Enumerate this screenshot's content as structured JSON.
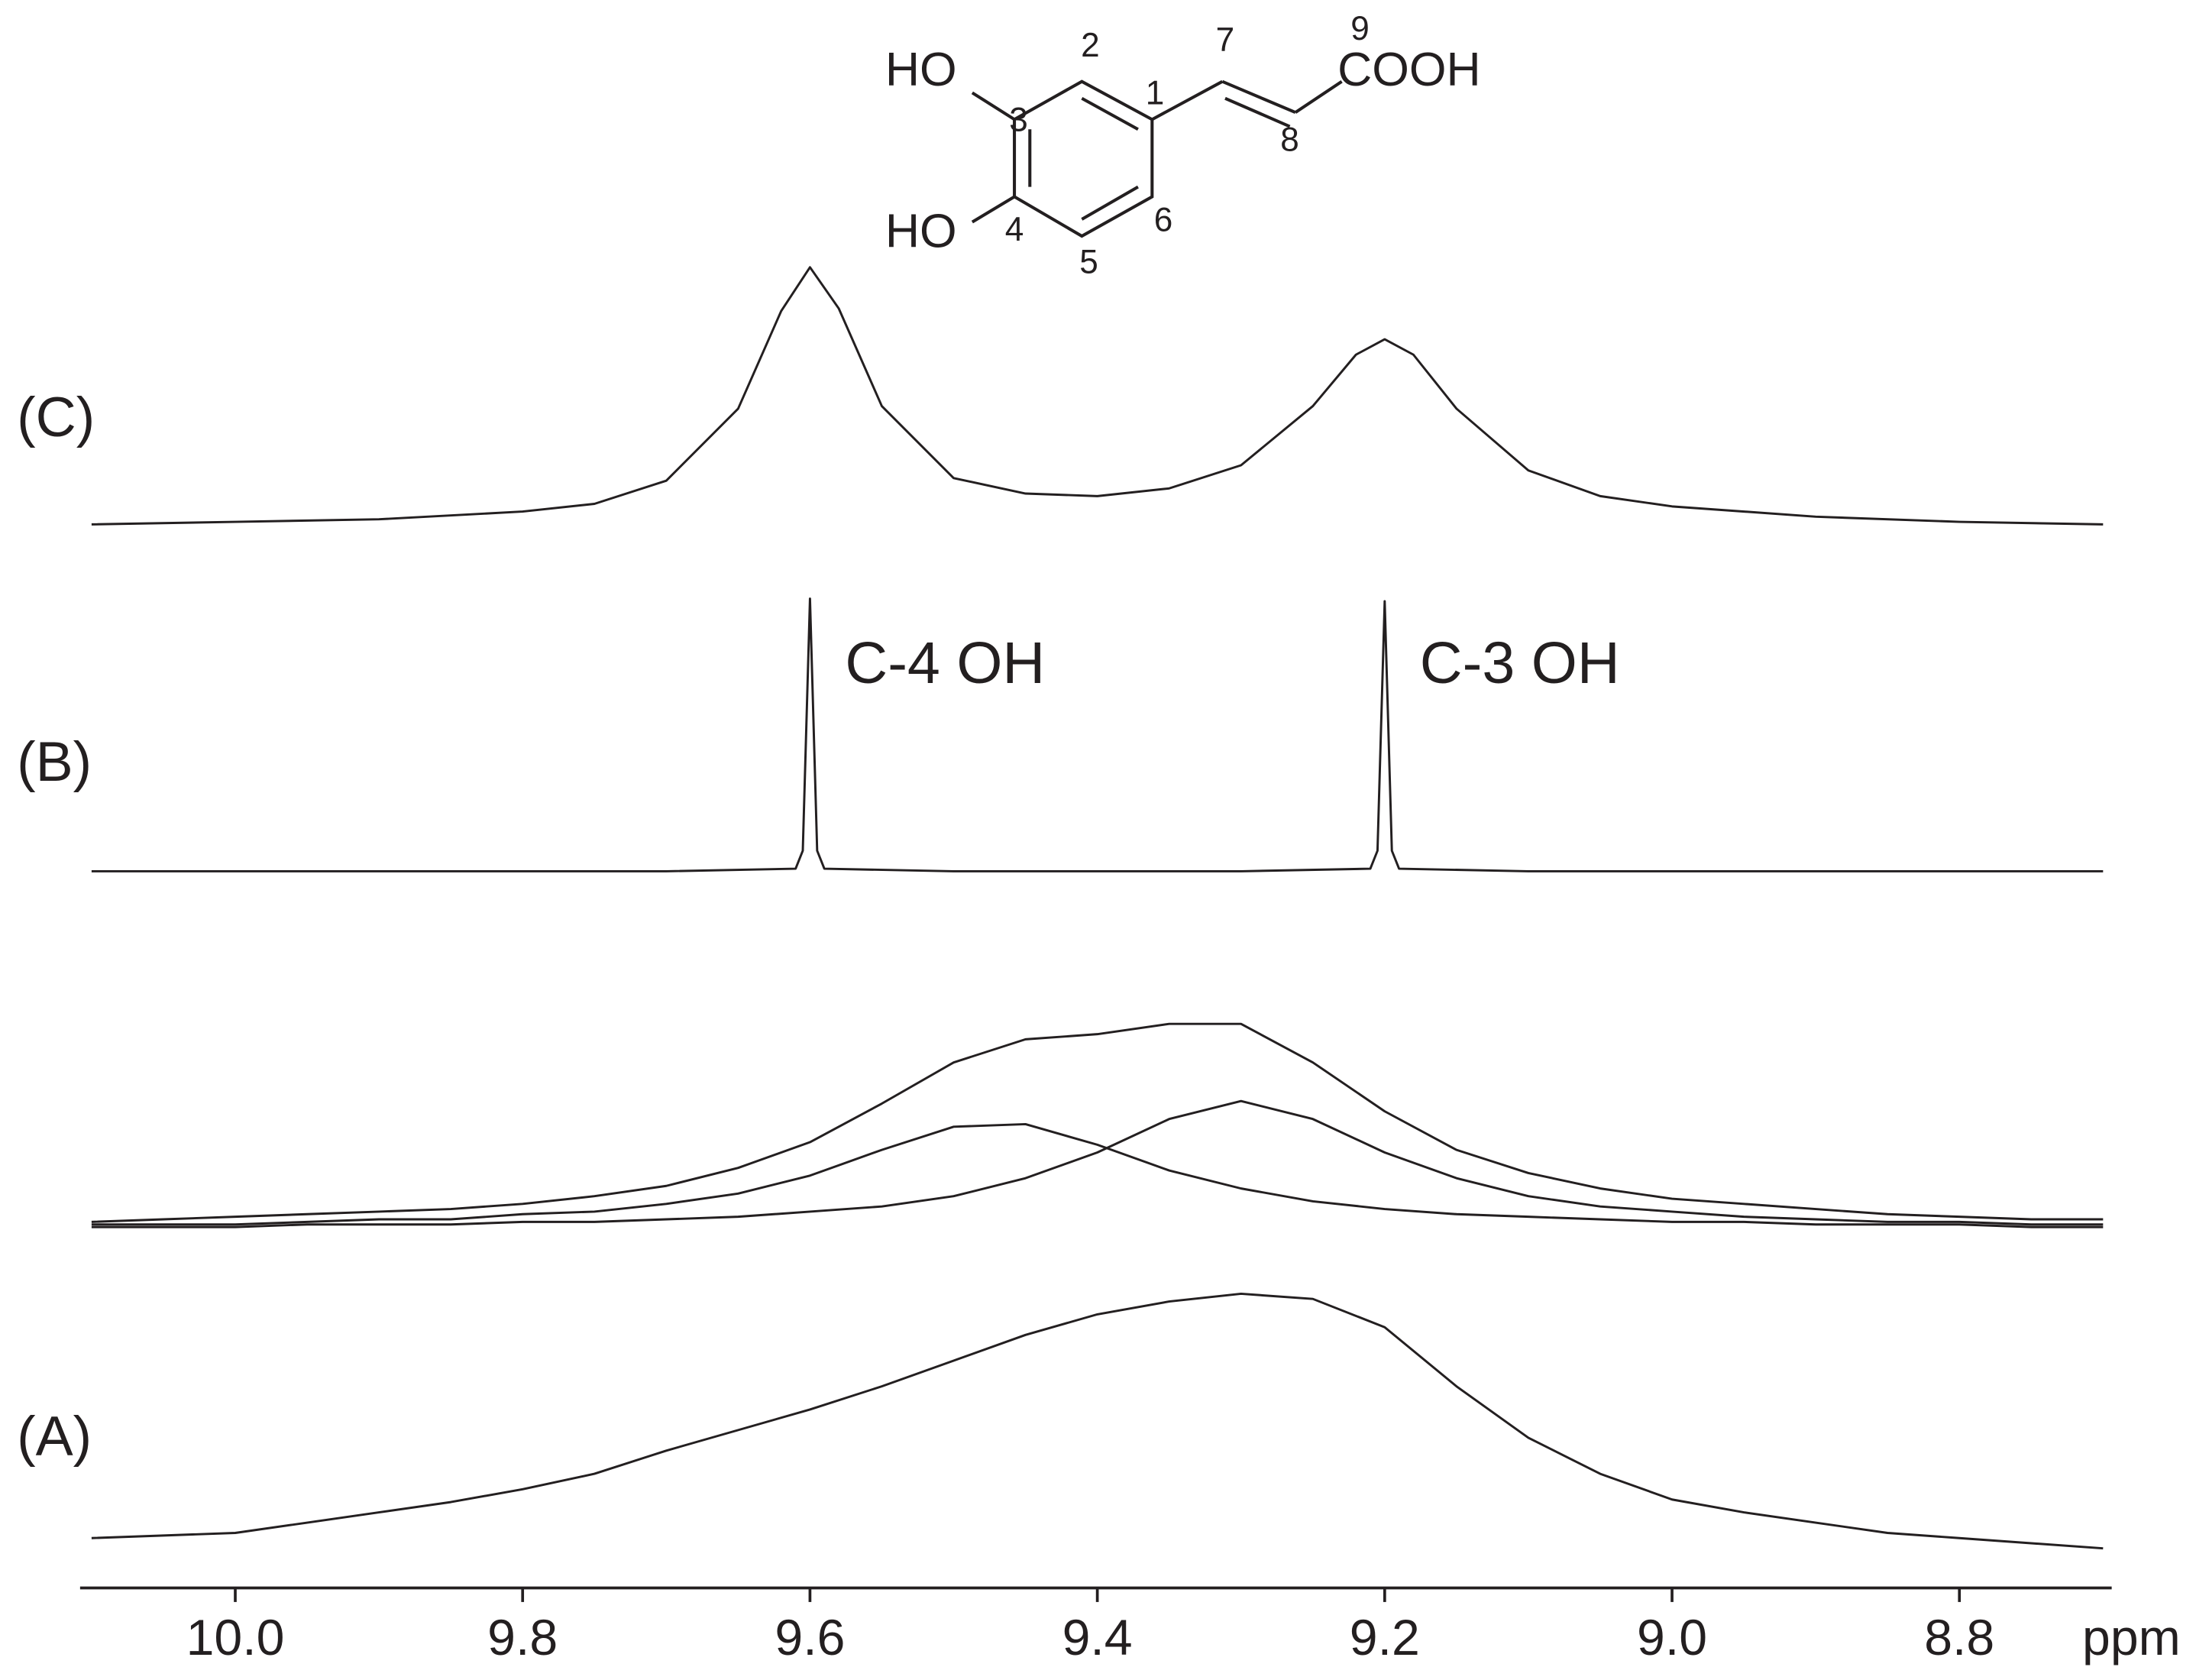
{
  "chart_data": {
    "type": "line",
    "x_label": "ppm",
    "xlim": [
      10.108,
      8.694
    ],
    "xticks": [
      {
        "value": 10,
        "label": "10.0"
      },
      9.8,
      9.6,
      9.4,
      9.2,
      {
        "value": 9,
        "label": "9.0"
      },
      8.8
    ],
    "color": "#231f20",
    "panels": [
      {
        "label": "(C)",
        "series": [
          {
            "x": [
              10.1,
              10.0,
              9.9,
              9.8,
              9.75,
              9.7,
              9.65,
              9.62,
              9.6,
              9.58,
              9.55,
              9.5,
              9.45,
              9.4,
              9.35,
              9.3,
              9.25,
              9.22,
              9.2,
              9.18,
              9.15,
              9.1,
              9.05,
              9.0,
              8.9,
              8.8,
              8.7
            ],
            "values": [
              1,
              2,
              3,
              6,
              9,
              18,
              46,
              84,
              101,
              85,
              47,
              19,
              13,
              12,
              15,
              24,
              47,
              67,
              73,
              67,
              46,
              22,
              12,
              8,
              4,
              2,
              1
            ]
          }
        ]
      },
      {
        "label": "(B)",
        "annotations": [
          {
            "text": "C-4 OH",
            "x": 9.6
          },
          {
            "text": "C-3 OH",
            "x": 9.2
          }
        ],
        "series": [
          {
            "x": [
              10.1,
              9.7,
              9.61,
              9.605,
              9.6,
              9.595,
              9.59,
              9.5,
              9.3,
              9.21,
              9.205,
              9.2,
              9.195,
              9.19,
              9.1,
              8.7
            ],
            "values": [
              0,
              0,
              1,
              8,
              106,
              8,
              1,
              0,
              0,
              1,
              8,
              105,
              8,
              1,
              0,
              0
            ]
          }
        ]
      },
      {
        "series": [
          {
            "x": [
              10.1,
              10.05,
              10.0,
              9.95,
              9.9,
              9.85,
              9.8,
              9.75,
              9.7,
              9.65,
              9.6,
              9.55,
              9.5,
              9.45,
              9.4,
              9.35,
              9.3,
              9.25,
              9.2,
              9.15,
              9.1,
              9.05,
              9.0,
              8.95,
              8.9,
              8.85,
              8.8,
              8.75,
              8.7
            ],
            "values": [
              3,
              4,
              5,
              6,
              7,
              8,
              10,
              13,
              17,
              24,
              34,
              49,
              65,
              74,
              76,
              80,
              80,
              65,
              46,
              31,
              22,
              16,
              12,
              10,
              8,
              6,
              5,
              4,
              4
            ]
          },
          {
            "x": [
              10.1,
              10.05,
              10.0,
              9.95,
              9.9,
              9.85,
              9.8,
              9.75,
              9.7,
              9.65,
              9.6,
              9.55,
              9.5,
              9.45,
              9.4,
              9.35,
              9.3,
              9.25,
              9.2,
              9.15,
              9.1,
              9.05,
              9.0,
              8.95,
              8.9,
              8.85,
              8.8,
              8.75,
              8.7
            ],
            "values": [
              2,
              2,
              2,
              3,
              4,
              4,
              6,
              7,
              10,
              14,
              21,
              31,
              40,
              41,
              33,
              23,
              16,
              11,
              8,
              6,
              5,
              4,
              3,
              3,
              2,
              2,
              2,
              1,
              1
            ]
          },
          {
            "x": [
              10.1,
              10.05,
              10.0,
              9.95,
              9.9,
              9.85,
              9.8,
              9.75,
              9.7,
              9.65,
              9.6,
              9.55,
              9.5,
              9.45,
              9.4,
              9.35,
              9.3,
              9.25,
              9.2,
              9.15,
              9.1,
              9.05,
              9.0,
              8.95,
              8.9,
              8.85,
              8.8,
              8.75,
              8.7
            ],
            "values": [
              1,
              1,
              1,
              2,
              2,
              2,
              3,
              3,
              4,
              5,
              7,
              9,
              13,
              20,
              30,
              43,
              50,
              43,
              30,
              20,
              13,
              9,
              7,
              5,
              4,
              3,
              3,
              2,
              2
            ]
          }
        ]
      },
      {
        "label": "(A)",
        "series": [
          {
            "x": [
              10.1,
              10.05,
              10.0,
              9.95,
              9.9,
              9.85,
              9.8,
              9.75,
              9.7,
              9.65,
              9.6,
              9.55,
              9.5,
              9.45,
              9.4,
              9.35,
              9.3,
              9.25,
              9.2,
              9.15,
              9.1,
              9.05,
              9.0,
              8.95,
              8.9,
              8.85,
              8.8,
              8.75,
              8.7
            ],
            "values": [
              3,
              4,
              5,
              9,
              13,
              17,
              22,
              28,
              37,
              45,
              53,
              62,
              72,
              82,
              90,
              95,
              98,
              96,
              85,
              62,
              42,
              28,
              18,
              13,
              9,
              5,
              3,
              1,
              -1
            ]
          }
        ]
      }
    ],
    "structure": {
      "labels": [
        "HO",
        "HO",
        "COOH",
        "1",
        "2",
        "3",
        "4",
        "5",
        "6",
        "7",
        "8",
        "9"
      ]
    }
  }
}
